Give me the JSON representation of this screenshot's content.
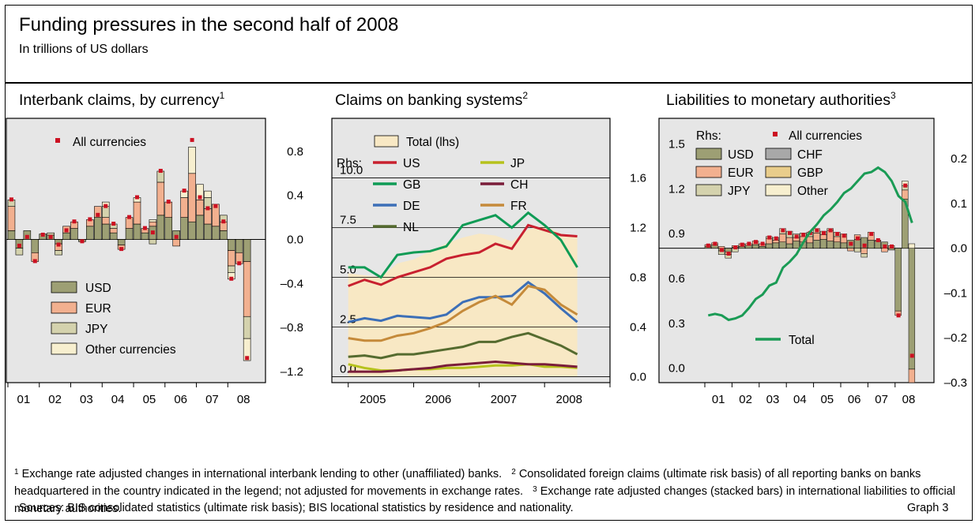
{
  "title": "Funding pressures in the second half of 2008",
  "subtitle": "In trillions of US dollars",
  "footnotes": [
    {
      "num": "1",
      "text": "Exchange rate adjusted changes in international interbank lending to other (unaffiliated) banks."
    },
    {
      "num": "2",
      "text": "Consolidated foreign claims (ultimate risk basis) of all reporting banks on banks headquartered in the country indicated in the legend; not adjusted for movements in exchange rates."
    },
    {
      "num": "3",
      "text": "Exchange rate adjusted changes (stacked bars) in international liabilities to official monetary authorities."
    }
  ],
  "sources": "Sources: BIS consolidated statistics (ultimate risk basis); BIS locational statistics by residence and nationality.",
  "graph_number": "Graph 3",
  "colors": {
    "panel_bg": "#e6e6e6",
    "usd": "#9d9f74",
    "eur": "#f2b08f",
    "jpy": "#d4d2ad",
    "chf": "#a8a8a8",
    "gbp": "#e9cd8b",
    "other": "#f7efcf",
    "dot": "#cc1122",
    "total_area": "#f8e8c4",
    "us": "#c8202f",
    "gb": "#0f9b55",
    "de": "#3c6fb7",
    "nl": "#556b2f",
    "jp": "#b6c21c",
    "ch": "#7a1d3a",
    "fr": "#c58a3a",
    "total_line": "#1a9b55"
  },
  "chart_data": [
    {
      "type": "bar",
      "title": "Interbank claims, by currency",
      "title_note": "1",
      "x_tick_labels": [
        "01",
        "02",
        "03",
        "04",
        "05",
        "06",
        "07",
        "08"
      ],
      "quarters_per_year": 4,
      "first_year_index": 0,
      "y_axis_side": "right",
      "ylim": [
        -1.3,
        1.1
      ],
      "y_ticks": [
        {
          "v": 0.8,
          "label": "0.8"
        },
        {
          "v": 0.4,
          "label": "0.4"
        },
        {
          "v": 0.0,
          "label": "0.0"
        },
        {
          "v": -0.4,
          "label": "–0.4"
        },
        {
          "v": -0.8,
          "label": "–0.8"
        },
        {
          "v": -1.2,
          "label": "–1.2"
        }
      ],
      "legend_dot": "All currencies",
      "series": [
        {
          "name": "USD",
          "color_key": "usd",
          "values": [
            0.08,
            -0.08,
            0.08,
            -0.12,
            0.05,
            0.04,
            -0.04,
            0.06,
            0.1,
            -0.02,
            0.12,
            0.2,
            0.14,
            0.06,
            -0.05,
            0.1,
            0.14,
            0.06,
            0.12,
            0.22,
            0.2,
            0.08,
            0.2,
            0.16,
            0.22,
            0.14,
            0.12,
            0.08,
            -0.1,
            -0.12,
            -0.2
          ]
        },
        {
          "name": "EUR",
          "color_key": "eur",
          "values": [
            0.22,
            0.0,
            0.0,
            -0.08,
            0.0,
            0.0,
            -0.06,
            0.06,
            0.06,
            0.0,
            0.06,
            0.1,
            0.06,
            0.04,
            -0.04,
            0.1,
            0.2,
            0.04,
            0.04,
            0.3,
            0.14,
            -0.06,
            0.18,
            0.44,
            0.14,
            0.14,
            0.2,
            0.08,
            -0.14,
            -0.1,
            -0.5
          ]
        },
        {
          "name": "JPY",
          "color_key": "jpy",
          "values": [
            0.06,
            -0.06,
            0.0,
            0.0,
            0.0,
            0.02,
            -0.04,
            0.0,
            0.0,
            0.0,
            0.0,
            0.0,
            0.1,
            0.04,
            0.0,
            0.0,
            0.0,
            0.0,
            -0.04,
            0.1,
            0.0,
            0.0,
            0.0,
            0.0,
            0.0,
            0.1,
            0.0,
            0.06,
            -0.06,
            0.0,
            -0.2
          ]
        },
        {
          "name": "Other currencies",
          "color_key": "other",
          "values": [
            0.0,
            0.0,
            0.0,
            0.0,
            0.0,
            0.0,
            0.0,
            0.0,
            0.0,
            0.0,
            0.0,
            0.0,
            0.04,
            0.0,
            0.0,
            0.0,
            0.04,
            0.0,
            0.02,
            0.0,
            0.0,
            0.0,
            0.06,
            0.24,
            0.14,
            0.06,
            0.0,
            0.0,
            -0.06,
            0.0,
            -0.2
          ]
        }
      ],
      "all_currencies": [
        0.36,
        -0.06,
        0.02,
        -0.2,
        0.04,
        0.02,
        -0.05,
        0.08,
        0.16,
        -0.02,
        0.18,
        0.22,
        0.3,
        0.14,
        -0.09,
        0.2,
        0.38,
        0.1,
        0.06,
        0.62,
        0.34,
        0.02,
        0.44,
        0.9,
        0.38,
        0.28,
        0.3,
        0.16,
        -0.36,
        -0.22,
        -1.08
      ]
    },
    {
      "type": "line",
      "title": "Claims on banking systems",
      "title_note": "2",
      "x_tick_labels": [
        "2005",
        "2006",
        "2007",
        "2008"
      ],
      "x_start": 2005.0,
      "x_step": 0.25,
      "xlim": [
        2004.75,
        2009.0
      ],
      "y_left": {
        "lim": [
          -0.3,
          13.0
        ],
        "ticks": [
          {
            "v": 0,
            "label": "0.0"
          },
          {
            "v": 2.5,
            "label": "2.5"
          },
          {
            "v": 5.0,
            "label": "5.0"
          },
          {
            "v": 7.5,
            "label": "7.5"
          },
          {
            "v": 10.0,
            "label": "10.0"
          }
        ]
      },
      "y_right": {
        "lim": [
          -0.048,
          2.08
        ],
        "ticks": [
          {
            "v": 0,
            "label": "0.0"
          },
          {
            "v": 0.4,
            "label": "0.4"
          },
          {
            "v": 0.8,
            "label": "0.8"
          },
          {
            "v": 1.2,
            "label": "1.2"
          },
          {
            "v": 1.6,
            "label": "1.6"
          }
        ]
      },
      "legend_rhs_label": "Rhs:",
      "area": {
        "name": "Total (lhs)",
        "color_key": "total_area",
        "values": [
          5.2,
          5.1,
          5.0,
          5.7,
          5.9,
          6.3,
          6.7,
          7.0,
          7.2,
          7.1,
          6.8,
          7.4,
          7.6,
          7.2,
          7.0
        ]
      },
      "series": [
        {
          "name": "US",
          "color_key": "us",
          "values": [
            0.73,
            0.78,
            0.74,
            0.8,
            0.84,
            0.88,
            0.95,
            0.98,
            1.0,
            1.07,
            1.03,
            1.22,
            1.18,
            1.14,
            1.13
          ]
        },
        {
          "name": "GB",
          "color_key": "gb",
          "values": [
            0.88,
            0.88,
            0.8,
            0.98,
            1.0,
            1.01,
            1.05,
            1.22,
            1.26,
            1.3,
            1.2,
            1.32,
            1.22,
            1.1,
            0.88
          ]
        },
        {
          "name": "DE",
          "color_key": "de",
          "values": [
            0.44,
            0.47,
            0.45,
            0.49,
            0.48,
            0.47,
            0.5,
            0.6,
            0.64,
            0.64,
            0.65,
            0.76,
            0.67,
            0.55,
            0.44
          ]
        },
        {
          "name": "NL",
          "color_key": "nl",
          "values": [
            0.16,
            0.17,
            0.15,
            0.18,
            0.18,
            0.2,
            0.22,
            0.24,
            0.28,
            0.28,
            0.32,
            0.35,
            0.3,
            0.25,
            0.18
          ]
        },
        {
          "name": "JP",
          "color_key": "jp",
          "values": [
            0.1,
            0.07,
            0.05,
            0.05,
            0.06,
            0.06,
            0.07,
            0.07,
            0.08,
            0.09,
            0.09,
            0.1,
            0.08,
            0.08,
            0.07
          ]
        },
        {
          "name": "CH",
          "color_key": "ch",
          "values": [
            0.04,
            0.04,
            0.04,
            0.05,
            0.06,
            0.07,
            0.09,
            0.1,
            0.11,
            0.12,
            0.11,
            0.1,
            0.1,
            0.09,
            0.08
          ]
        },
        {
          "name": "FR",
          "color_key": "fr",
          "values": [
            0.31,
            0.29,
            0.29,
            0.33,
            0.35,
            0.39,
            0.44,
            0.53,
            0.6,
            0.65,
            0.58,
            0.73,
            0.7,
            0.58,
            0.5
          ]
        }
      ]
    },
    {
      "type": "bar",
      "title": "Liabilities to monetary authorities",
      "title_note": "3",
      "x_tick_labels": [
        "01",
        "02",
        "03",
        "04",
        "05",
        "06",
        "07",
        "08"
      ],
      "quarters_per_year": 4,
      "first_year_index": 0,
      "y_left": {
        "lim": [
          -0.05,
          1.72
        ],
        "ticks": [
          {
            "v": 0.0,
            "label": "0.0"
          },
          {
            "v": 0.3,
            "label": "0.3"
          },
          {
            "v": 0.6,
            "label": "0.6"
          },
          {
            "v": 0.9,
            "label": "0.9"
          },
          {
            "v": 1.2,
            "label": "1.2"
          },
          {
            "v": 1.5,
            "label": "1.5"
          }
        ]
      },
      "y_right": {
        "lim": [
          -0.3,
          0.29
        ],
        "ticks": [
          {
            "v": 0.2,
            "label": "0.2"
          },
          {
            "v": 0.1,
            "label": "0.1"
          },
          {
            "v": 0.0,
            "label": "0.0"
          },
          {
            "v": -0.1,
            "label": "–0.1"
          },
          {
            "v": -0.2,
            "label": "–0.2"
          },
          {
            "v": -0.3,
            "label": "–0.3"
          }
        ]
      },
      "legend_rhs_label": "Rhs:",
      "legend_dot": "All currencies",
      "series": [
        {
          "name": "USD",
          "color_key": "usd",
          "values": [
            0.004,
            0.008,
            -0.006,
            -0.008,
            0.002,
            0.004,
            0.006,
            0.008,
            0.004,
            0.01,
            0.012,
            0.014,
            0.01,
            0.016,
            0.014,
            0.012,
            0.018,
            0.02,
            0.016,
            0.014,
            0.012,
            0.018,
            0.02,
            0.024,
            0.018,
            0.016,
            0.014,
            -0.004,
            -0.14,
            0.11,
            -0.27
          ]
        },
        {
          "name": "EUR",
          "color_key": "eur",
          "values": [
            0.004,
            0.004,
            0.004,
            -0.006,
            0.004,
            0.006,
            0.004,
            0.008,
            0.006,
            0.012,
            0.006,
            0.018,
            0.014,
            0.008,
            0.012,
            0.014,
            0.016,
            0.01,
            0.024,
            0.012,
            0.02,
            -0.006,
            0.01,
            -0.012,
            0.018,
            0.002,
            -0.008,
            0.006,
            -0.01,
            0.02,
            -0.03
          ]
        },
        {
          "name": "JPY",
          "color_key": "jpy",
          "values": [
            0.0,
            0.0,
            -0.008,
            -0.008,
            -0.008,
            0.0,
            0.0,
            0.0,
            0.0,
            0.004,
            0.006,
            0.012,
            0.014,
            0.008,
            0.008,
            0.01,
            0.01,
            0.008,
            0.004,
            0.01,
            0.0,
            0.0,
            -0.008,
            -0.008,
            0.0,
            0.0,
            0.0,
            0.0,
            0.0,
            0.01,
            0.0
          ]
        },
        {
          "name": "CHF",
          "color_key": "chf",
          "values": [
            0.0,
            0.0,
            0.0,
            0.0,
            0.0,
            0.0,
            0.0,
            0.0,
            0.0,
            0.0,
            0.0,
            0.0,
            0.0,
            0.0,
            0.0,
            0.0,
            0.0,
            0.0,
            0.0,
            0.0,
            0.0,
            0.0,
            0.0,
            0.0,
            0.0,
            0.0,
            0.0,
            0.0,
            0.0,
            0.0,
            0.0
          ]
        },
        {
          "name": "GBP",
          "color_key": "gbp",
          "values": [
            0.0,
            0.0,
            0.0,
            0.0,
            0.0,
            0.0,
            0.0,
            0.0,
            0.0,
            0.0,
            0.0,
            0.0,
            0.0,
            0.0,
            0.0,
            0.0,
            0.0,
            0.0,
            0.0,
            0.0,
            0.0,
            0.0,
            0.0,
            0.0,
            0.0,
            0.0,
            0.0,
            0.0,
            0.0,
            0.0,
            0.0
          ]
        },
        {
          "name": "Other",
          "color_key": "other",
          "values": [
            0.0,
            0.0,
            0.0,
            0.0,
            0.0,
            0.0,
            0.0,
            0.0,
            0.0,
            0.0,
            0.0,
            0.0,
            0.0,
            0.0,
            0.0,
            0.0,
            0.0,
            0.0,
            0.0,
            0.0,
            0.0,
            0.0,
            0.0,
            0.0,
            0.0,
            0.0,
            0.0,
            0.0,
            0.0,
            0.01,
            0.01
          ]
        }
      ],
      "all_currencies": [
        0.006,
        0.01,
        -0.004,
        -0.012,
        0.002,
        0.008,
        0.01,
        0.014,
        0.01,
        0.024,
        0.022,
        0.04,
        0.034,
        0.026,
        0.03,
        0.034,
        0.04,
        0.034,
        0.04,
        0.032,
        0.028,
        0.01,
        0.022,
        0.006,
        0.032,
        0.018,
        0.004,
        0.004,
        -0.15,
        0.14,
        -0.24
      ],
      "line": {
        "name": "Total",
        "color_key": "total_line",
        "axis": "left",
        "values": [
          0.4,
          0.41,
          0.4,
          0.37,
          0.38,
          0.4,
          0.45,
          0.51,
          0.54,
          0.6,
          0.62,
          0.72,
          0.76,
          0.81,
          0.89,
          0.96,
          1.01,
          1.07,
          1.11,
          1.16,
          1.22,
          1.25,
          1.3,
          1.35,
          1.36,
          1.39,
          1.36,
          1.3,
          1.2,
          1.16,
          1.02
        ]
      }
    }
  ]
}
